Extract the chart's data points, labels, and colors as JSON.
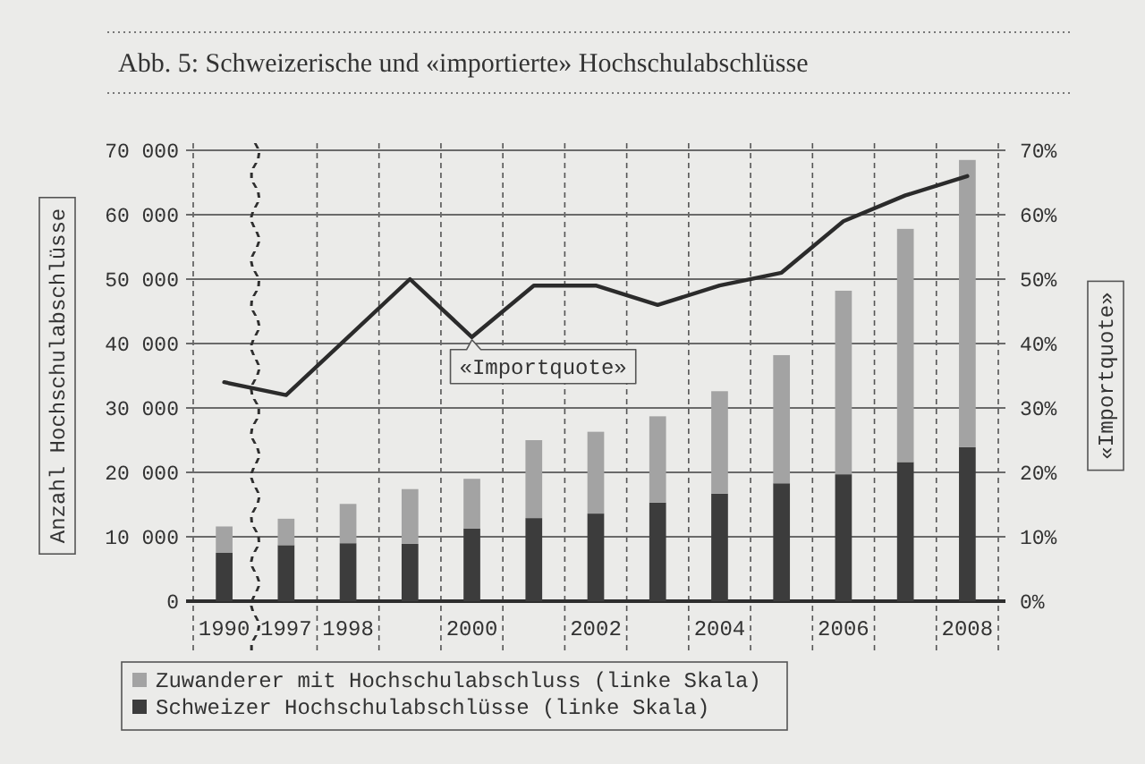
{
  "chart_data": {
    "type": "bar",
    "title": "Abb. 5: Schweizerische und «importierte» Hochschulabschlüsse",
    "ylabel": "Anzahl Hochschulabschlüsse",
    "y2label": "«Importquote»",
    "categories": [
      "1990",
      "1997",
      "1998",
      null,
      "2000",
      null,
      "2002",
      null,
      "2004",
      null,
      "2006",
      null,
      "2008"
    ],
    "stacked": true,
    "series": [
      {
        "name": "Schweizer Hochschulabschlüsse (linke Skala)",
        "color": "#3c3c3c",
        "values": [
          7500,
          8700,
          9000,
          8900,
          11300,
          12900,
          13600,
          15300,
          16700,
          18300,
          19700,
          21600,
          23900
        ]
      },
      {
        "name": "Zuwanderer mit Hochschulabschluss (linke Skala)",
        "color": "#a3a3a3",
        "values": [
          4100,
          4100,
          6100,
          8500,
          7700,
          12100,
          12700,
          13400,
          15900,
          19900,
          28500,
          36200,
          44600
        ]
      },
      {
        "type": "line",
        "axis": "y2",
        "color": "#2b2b2b",
        "values": [
          34,
          32,
          41,
          50,
          41,
          49,
          49,
          46,
          49,
          51,
          59,
          63,
          66
        ]
      }
    ],
    "ylim": [
      0,
      70000
    ],
    "yticks": [
      0,
      {
        "value": 10000,
        "label": "10 000"
      },
      {
        "value": 20000,
        "label": "20 000"
      },
      {
        "value": 30000,
        "label": "30 000"
      },
      {
        "value": 40000,
        "label": "40 000"
      },
      {
        "value": 50000,
        "label": "50 000"
      },
      {
        "value": 60000,
        "label": "60 000"
      },
      {
        "value": 70000,
        "label": "70 000"
      }
    ],
    "y2lim": [
      0,
      70
    ],
    "y2ticks": [
      {
        "value": 0,
        "label": "0%"
      },
      {
        "value": 10,
        "label": "10%"
      },
      {
        "value": 20,
        "label": "20%"
      },
      {
        "value": 30,
        "label": "30%"
      },
      {
        "value": 40,
        "label": "40%"
      },
      {
        "value": 50,
        "label": "50%"
      },
      {
        "value": 60,
        "label": "60%"
      },
      {
        "value": 70,
        "label": "70%"
      }
    ],
    "grid": true,
    "legend": "bottom left",
    "annotations": [
      {
        "text": "«Importquote»",
        "x": "2000",
        "y": 41000
      }
    ]
  }
}
